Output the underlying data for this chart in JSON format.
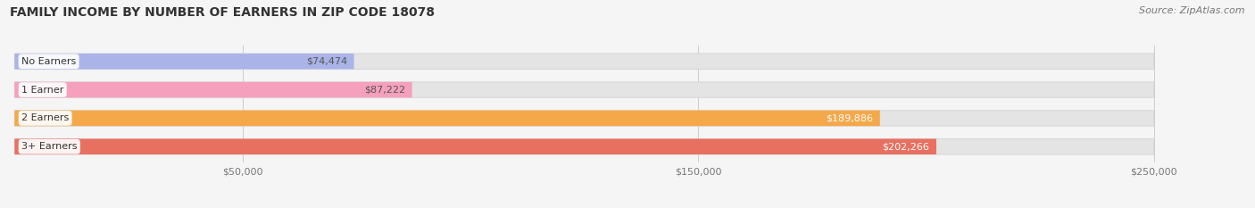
{
  "title": "FAMILY INCOME BY NUMBER OF EARNERS IN ZIP CODE 18078",
  "source": "Source: ZipAtlas.com",
  "categories": [
    "No Earners",
    "1 Earner",
    "2 Earners",
    "3+ Earners"
  ],
  "values": [
    74474,
    87222,
    189886,
    202266
  ],
  "bar_colors": [
    "#aab4e8",
    "#f5a0bc",
    "#f5a84a",
    "#e87060"
  ],
  "label_colors": [
    "#555555",
    "#555555",
    "#ffffff",
    "#ffffff"
  ],
  "value_labels": [
    "$74,474",
    "$87,222",
    "$189,886",
    "$202,266"
  ],
  "data_max": 250000,
  "xlim_max": 270000,
  "xticks": [
    50000,
    150000,
    250000
  ],
  "xtick_labels": [
    "$50,000",
    "$150,000",
    "$250,000"
  ],
  "background_color": "#f5f5f5",
  "bar_bg_color": "#e4e4e4",
  "bar_bg_edge_color": "#d8d8d8",
  "title_fontsize": 10,
  "source_fontsize": 8,
  "bar_height": 0.55,
  "figsize": [
    14.06,
    2.33
  ],
  "dpi": 100,
  "value_threshold": 62500
}
